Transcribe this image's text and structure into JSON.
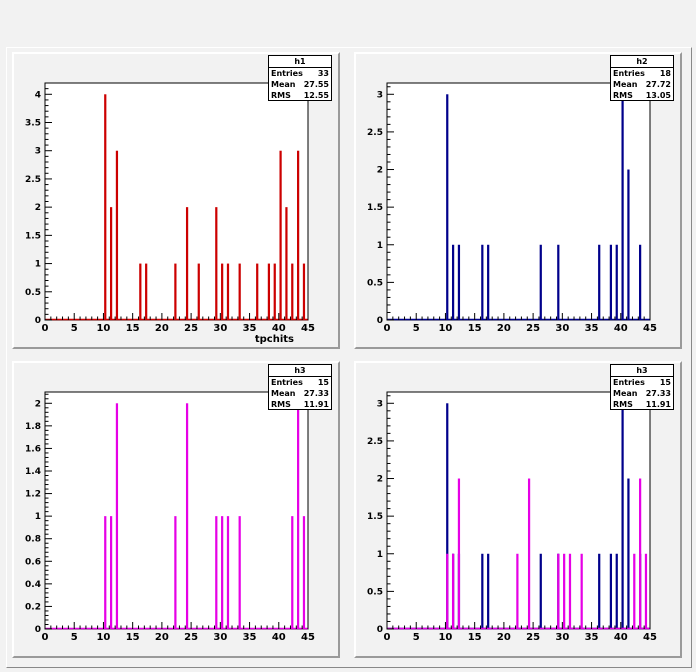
{
  "pads": [
    {
      "stats": {
        "title": "h1",
        "rows": [
          {
            "key": "Entries",
            "value": "33"
          },
          {
            "key": "Mean",
            "value": "27.55"
          },
          {
            "key": "RMS",
            "value": "12.55"
          }
        ]
      },
      "chart_data": {
        "type": "bar",
        "title": "",
        "xlabel": "tpchits",
        "ylabel": "",
        "xlim": [
          0,
          45
        ],
        "ylim": [
          0,
          4.2
        ],
        "xticks": [
          "0",
          "5",
          "10",
          "15",
          "20",
          "25",
          "30",
          "35",
          "40",
          "45"
        ],
        "yticks": [
          "0",
          "0.5",
          "1",
          "1.5",
          "2",
          "2.5",
          "3",
          "3.5",
          "4"
        ],
        "series": [
          {
            "color": "#cc0000",
            "x": [
              10,
              11,
              12,
              16,
              17,
              22,
              24,
              26,
              29,
              30,
              31,
              33,
              36,
              38,
              39,
              40,
              41,
              42,
              43,
              44
            ],
            "values": [
              4,
              2,
              3,
              1,
              1,
              1,
              2,
              1,
              2,
              1,
              1,
              1,
              1,
              1,
              1,
              3,
              2,
              1,
              3,
              1
            ]
          }
        ]
      }
    },
    {
      "stats": {
        "title": "h2",
        "rows": [
          {
            "key": "Entries",
            "value": "18"
          },
          {
            "key": "Mean",
            "value": "27.72"
          },
          {
            "key": "RMS",
            "value": "13.05"
          }
        ]
      },
      "chart_data": {
        "type": "bar",
        "title": "",
        "xlabel": "",
        "ylabel": "",
        "xlim": [
          0,
          45
        ],
        "ylim": [
          0,
          3.15
        ],
        "xticks": [
          "0",
          "5",
          "10",
          "15",
          "20",
          "25",
          "30",
          "35",
          "40",
          "45"
        ],
        "yticks": [
          "0",
          "0.5",
          "1",
          "1.5",
          "2",
          "2.5",
          "3"
        ],
        "series": [
          {
            "color": "#00008b",
            "x": [
              10,
              11,
              12,
              16,
              17,
              26,
              29,
              36,
              38,
              39,
              40,
              41,
              43
            ],
            "values": [
              3,
              1,
              1,
              1,
              1,
              1,
              1,
              1,
              1,
              1,
              3,
              2,
              1
            ]
          }
        ]
      }
    },
    {
      "stats": {
        "title": "h3",
        "rows": [
          {
            "key": "Entries",
            "value": "15"
          },
          {
            "key": "Mean",
            "value": "27.33"
          },
          {
            "key": "RMS",
            "value": "11.91"
          }
        ]
      },
      "chart_data": {
        "type": "bar",
        "title": "",
        "xlabel": "",
        "ylabel": "",
        "xlim": [
          0,
          45
        ],
        "ylim": [
          0,
          2.1
        ],
        "xticks": [
          "0",
          "5",
          "10",
          "15",
          "20",
          "25",
          "30",
          "35",
          "40",
          "45"
        ],
        "yticks": [
          "0",
          "0.2",
          "0.4",
          "0.6",
          "0.8",
          "1",
          "1.2",
          "1.4",
          "1.6",
          "1.8",
          "2"
        ],
        "series": [
          {
            "color": "#e600e6",
            "x": [
              10,
              11,
              12,
              22,
              24,
              29,
              30,
              31,
              33,
              42,
              43,
              44
            ],
            "values": [
              1,
              1,
              2,
              1,
              2,
              1,
              1,
              1,
              1,
              1,
              2,
              1
            ]
          }
        ]
      }
    },
    {
      "stats": {
        "title": "h3",
        "rows": [
          {
            "key": "Entries",
            "value": "15"
          },
          {
            "key": "Mean",
            "value": "27.33"
          },
          {
            "key": "RMS",
            "value": "11.91"
          }
        ]
      },
      "chart_data": {
        "type": "bar",
        "title": "",
        "xlabel": "",
        "ylabel": "",
        "xlim": [
          0,
          45
        ],
        "ylim": [
          0,
          3.15
        ],
        "xticks": [
          "0",
          "5",
          "10",
          "15",
          "20",
          "25",
          "30",
          "35",
          "40",
          "45"
        ],
        "yticks": [
          "0",
          "0.5",
          "1",
          "1.5",
          "2",
          "2.5",
          "3"
        ],
        "series": [
          {
            "color": "#00008b",
            "x": [
              10,
              11,
              12,
              16,
              17,
              26,
              29,
              36,
              38,
              39,
              40,
              41,
              43
            ],
            "values": [
              3,
              1,
              1,
              1,
              1,
              1,
              1,
              1,
              1,
              1,
              3,
              2,
              1
            ]
          },
          {
            "color": "#e600e6",
            "x": [
              10,
              11,
              12,
              22,
              24,
              29,
              30,
              31,
              33,
              42,
              43,
              44
            ],
            "values": [
              1,
              1,
              2,
              1,
              2,
              1,
              1,
              1,
              1,
              1,
              2,
              1
            ]
          }
        ]
      }
    }
  ]
}
